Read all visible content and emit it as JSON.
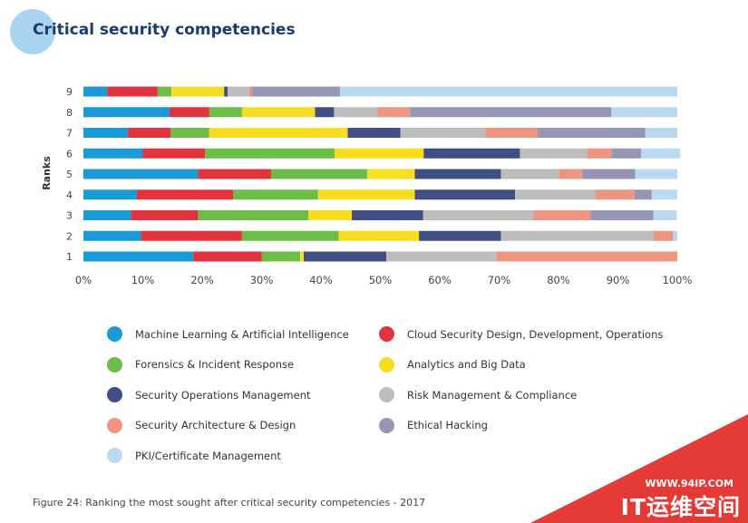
{
  "title": "Critical security competencies",
  "caption": "Figure 24: Ranking the most sought after critical security competencies - 2017",
  "watermark": {
    "url": "WWW.94IP.COM",
    "name": "IT运维空间"
  },
  "chart_data": {
    "type": "bar",
    "orientation": "horizontal",
    "stacked": true,
    "normalized": true,
    "title": "Critical security competencies",
    "xlabel": "",
    "ylabel": "Ranks",
    "xlim": [
      0,
      100
    ],
    "x_ticks": [
      "0%",
      "10%",
      "20%",
      "30%",
      "40%",
      "50%",
      "60%",
      "70%",
      "80%",
      "90%",
      "100%"
    ],
    "categories": [
      "9",
      "8",
      "7",
      "6",
      "5",
      "4",
      "3",
      "2",
      "1"
    ],
    "series": [
      {
        "name": "Machine Learning & Artificial Intelligence",
        "color": "#1a9ad6",
        "values": [
          4,
          14.5,
          7.5,
          10,
          19.3,
          9,
          8,
          9.7,
          18.5
        ]
      },
      {
        "name": "Cloud Security Design, Development, Operations",
        "color": "#e2343f",
        "values": [
          8.5,
          6.7,
          7.2,
          10.5,
          12.3,
          16.2,
          11.3,
          17,
          11.5
        ]
      },
      {
        "name": "Forensics & Incident Response",
        "color": "#6bbd45",
        "values": [
          2.3,
          5.5,
          6.5,
          21.8,
          16.2,
          14.3,
          18.6,
          16.3,
          6.5
        ]
      },
      {
        "name": "Analytics and Big Data",
        "color": "#f6dd1e",
        "values": [
          8.9,
          12.3,
          23.3,
          15,
          8,
          16.3,
          7.3,
          13.5,
          0.6
        ]
      },
      {
        "name": "Security Operations Management",
        "color": "#3f4f83",
        "values": [
          0.6,
          3.2,
          8.9,
          16.2,
          14.5,
          16.9,
          12,
          13.8,
          13.9
        ]
      },
      {
        "name": "Risk Management & Compliance",
        "color": "#bdbdbd",
        "values": [
          3.6,
          7.3,
          14.3,
          11.3,
          9.8,
          13.5,
          18.6,
          25.7,
          18.6
        ]
      },
      {
        "name": "Security Architecture & Design",
        "color": "#ef9480",
        "values": [
          0.5,
          5.5,
          8.8,
          4.1,
          3.9,
          6.6,
          9.6,
          3.3,
          30.4
        ]
      },
      {
        "name": "Ethical Hacking",
        "color": "#9595b6",
        "values": [
          14.8,
          33.9,
          18.1,
          5,
          8.9,
          2.9,
          10.6,
          0,
          0
        ]
      },
      {
        "name": "PKI/Certificate Management",
        "color": "#b8d9f0",
        "values": [
          56.8,
          11.1,
          5.4,
          6.6,
          7.1,
          4.3,
          3.9,
          0.7,
          0
        ]
      }
    ]
  }
}
